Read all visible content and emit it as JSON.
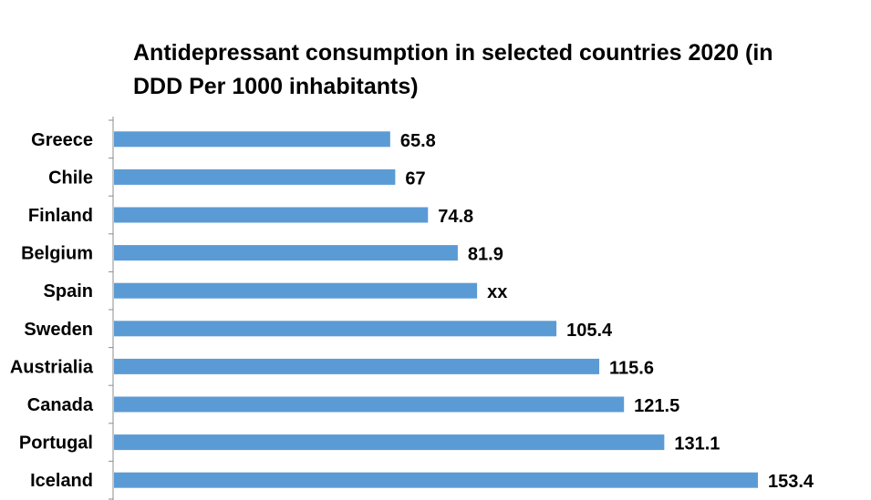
{
  "chart_data": {
    "type": "bar",
    "orientation": "horizontal",
    "title": "Antidepressant consumption in selected countries 2020 (in DDD Per 1000 inhabitants)",
    "categories": [
      "Greece",
      "Chile",
      "Finland",
      "Belgium",
      "Spain",
      "Sweden",
      "Austrialia",
      "Canada",
      "Portugal",
      "Iceland"
    ],
    "values": [
      65.8,
      67,
      74.8,
      81.9,
      86.5,
      105.4,
      115.6,
      121.5,
      131.1,
      153.4
    ],
    "data_labels": [
      "65.8",
      "67",
      "74.8",
      "81.9",
      "xx",
      "105.4",
      "115.6",
      "121.5",
      "131.1",
      "153.4"
    ],
    "xlim": [
      0,
      160
    ],
    "bar_color": "#5B9BD5",
    "grid": false,
    "legend": "none"
  }
}
